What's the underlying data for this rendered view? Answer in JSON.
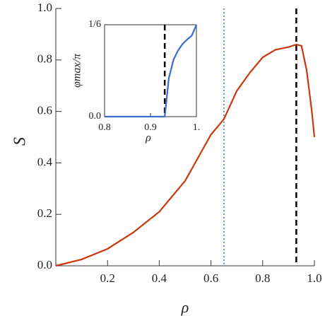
{
  "chart_data": [
    {
      "type": "line",
      "xlabel": "ρ",
      "ylabel": "S",
      "x": [
        0,
        0.1,
        0.2,
        0.3,
        0.4,
        0.45,
        0.5,
        0.55,
        0.6,
        0.65,
        0.7,
        0.75,
        0.8,
        0.85,
        0.9,
        0.93,
        0.95,
        0.97,
        0.99,
        1.0
      ],
      "values": [
        0,
        0.025,
        0.066,
        0.13,
        0.21,
        0.27,
        0.33,
        0.42,
        0.51,
        0.57,
        0.68,
        0.75,
        0.81,
        0.84,
        0.85,
        0.86,
        0.855,
        0.76,
        0.6,
        0.5
      ],
      "color": "#c8380c",
      "xlim": [
        0,
        1
      ],
      "ylim": [
        0,
        1
      ],
      "xticks": [
        0.2,
        0.4,
        0.6,
        0.8,
        {
          "value": 1,
          "label": "1.0"
        }
      ],
      "yticks": [
        {
          "value": 0,
          "label": "0.0"
        },
        0.2,
        0.4,
        0.6,
        0.8,
        {
          "value": 1,
          "label": "1.0"
        }
      ],
      "vlines": [
        {
          "x": 0.65,
          "color": "#6a8fd0",
          "style": "dotted"
        },
        {
          "x": 0.93,
          "color": "#000000",
          "style": "dashed"
        }
      ]
    },
    {
      "type": "line",
      "xlabel": "ρ",
      "ylabel": "φmax/π",
      "x": [
        0.8,
        0.85,
        0.9,
        0.931,
        0.94,
        0.95,
        0.96,
        0.97,
        0.98,
        0.99,
        1.0
      ],
      "values": [
        0,
        0,
        0,
        0,
        0.07,
        0.103,
        0.12,
        0.132,
        0.14,
        0.147,
        0.1667
      ],
      "color": "#3a6ccc",
      "xlim": [
        0.8,
        1
      ],
      "ylim": [
        0,
        0.1667
      ],
      "xticks": [
        0.8,
        0.9,
        {
          "value": 1,
          "label": "1."
        }
      ],
      "yticks": [
        {
          "value": 0,
          "label": "0.0"
        },
        {
          "value": 0.1667,
          "label": "1/6"
        }
      ],
      "vlines": [
        {
          "x": 0.931,
          "color": "#000000",
          "style": "dashed"
        }
      ]
    }
  ]
}
